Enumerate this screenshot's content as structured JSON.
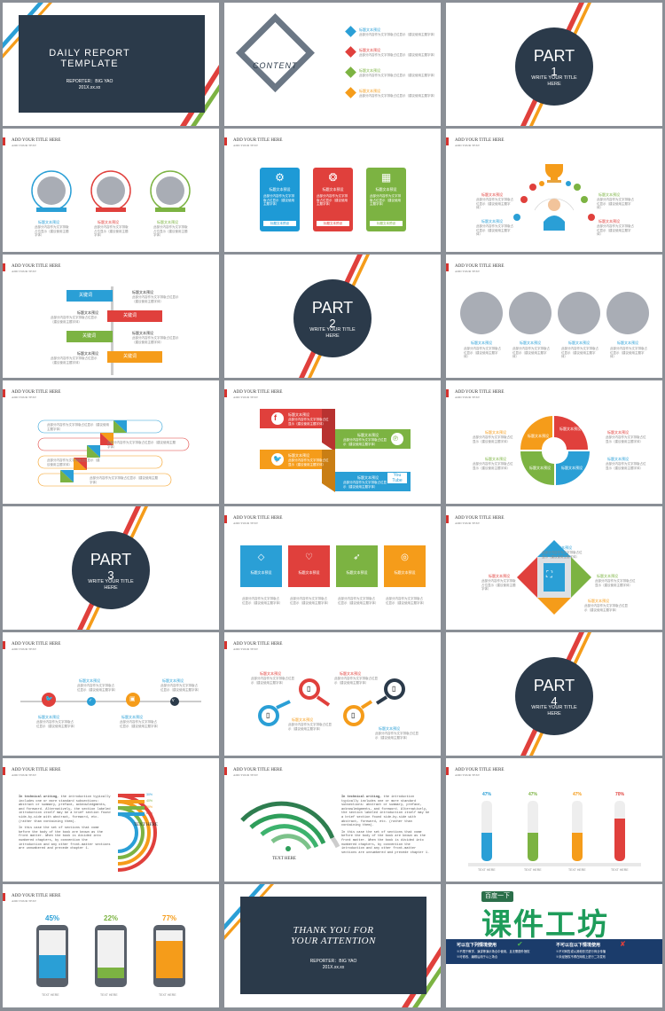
{
  "slide1": {
    "title_l1": "DAILY REPORT",
    "title_l2": "TEMPLATE",
    "reporter": "REPORTER：BIG YAO",
    "date": "201X.xx.xx"
  },
  "slide2": {
    "content_label": "CONTENT",
    "items": [
      {
        "title": "标题文本预设",
        "text": "此部分内容作为文字排版占位显示（建议使用主题字体）",
        "color": "#2a9fd6"
      },
      {
        "title": "标题文本预设",
        "text": "此部分内容作为文字排版占位显示（建议使用主题字体）",
        "color": "#e0403c"
      },
      {
        "title": "标题文本预设",
        "text": "此部分内容作为文字排版占位显示（建议使用主题字体）",
        "color": "#7cb342"
      },
      {
        "title": "标题文本预设",
        "text": "此部分内容作为文字排版占位显示（建议使用主题字体）",
        "color": "#f59c1a"
      }
    ]
  },
  "part": {
    "word": "PART",
    "subtitle": "WRITE YOUR TITLE",
    "here": "HERE",
    "n1": "1",
    "n2": "2",
    "n3": "3",
    "n4": "4"
  },
  "header": {
    "title": "ADD YOUR TITLE HERE",
    "sub": "ADD YOUR TEXT"
  },
  "common": {
    "preset": "标题文本预设",
    "text": "此部分内容作为文字排版占位显示（建议使用主题字体）",
    "text_short": "此部分内容作为文字排版占位显示（建议使用主题字体）"
  },
  "keyword": "关键词",
  "text_here": "TEXT HERE",
  "paragraph_bold": "In technical writing,",
  "paragraph": "the introduction typically includes one or more standard subsections: abstract or summary, preface, acknowledgments, and foreword. Alternatively, the section labeled introduction itself may be a brief section found side-by-side with abstract, foreword, etc. (rather than containing them).",
  "paragraph2": "In this case the set of sections that come before the body of the book are known as the front matter. When the book is divided into numbered chapters, by convention the introduction and any other front-matter sections are unnumbered and precede chapter 1.",
  "arc_pcts": [
    "30%",
    "40%",
    "50%",
    "60%",
    "70%"
  ],
  "tube_pcts": [
    "47%",
    "47%",
    "47%",
    "70%"
  ],
  "phone_pcts": [
    "45%",
    "22%",
    "77%"
  ],
  "fb": "f",
  "you": "You",
  "tube": "Tube",
  "closing": {
    "l1": "THANK YOU FOR",
    "l2": "YOUR ATTENTION",
    "reporter": "REPORTER：BIG YAO",
    "date": "201X.xx.xx"
  },
  "ad": {
    "badge": "百度一下",
    "title": "课件工坊",
    "left_head": "可以在下列情境使用",
    "right_head": "不可以在以下情境使用",
    "left_1": "※不限于教学、演讲等演示场合中使用，且无需额外授权",
    "left_2": "※可修改、编辑后用于以上场合",
    "right_1": "※不可转售或以其他形式进行商业传播",
    "right_2": "※未经授权不得在网络上进行二次发布"
  }
}
